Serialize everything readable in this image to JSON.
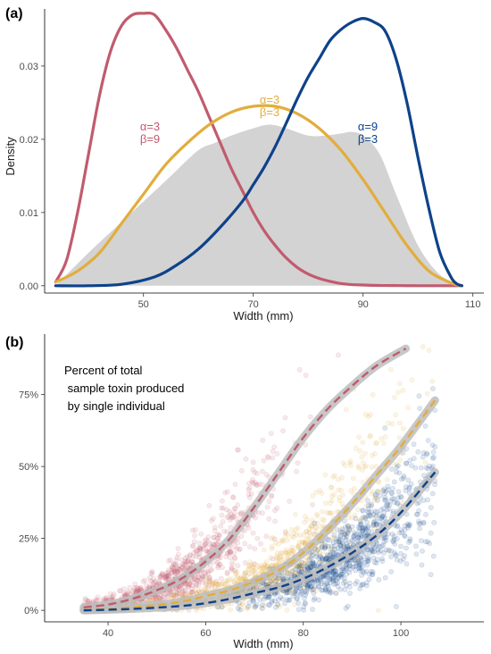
{
  "chart_data": [
    {
      "type": "line",
      "panel_label": "(a)",
      "xlabel": "Width (mm)",
      "ylabel": "Density",
      "xlim": [
        32,
        112
      ],
      "ylim": [
        -0.001,
        0.0378
      ],
      "xticks": [
        50,
        70,
        90,
        110
      ],
      "yticks": [
        0,
        0.01,
        0.02,
        0.03
      ],
      "ytick_labels": [
        "0.00",
        "0.01",
        "0.02",
        "0.03"
      ],
      "grid": false,
      "background_distribution": {
        "color": "#d3d3d3",
        "x": [
          34,
          40,
          45,
          50,
          55,
          60,
          63,
          66,
          70,
          73,
          76,
          80,
          83,
          86,
          88,
          90,
          93,
          96,
          100,
          104,
          108
        ],
        "y": [
          0.0,
          0.0045,
          0.008,
          0.0115,
          0.015,
          0.0185,
          0.0195,
          0.0205,
          0.0215,
          0.022,
          0.0215,
          0.0205,
          0.0205,
          0.0208,
          0.021,
          0.0205,
          0.018,
          0.0125,
          0.0055,
          0.0015,
          0.0
        ]
      },
      "series": [
        {
          "color": "#c15b6e",
          "annotation": [
            "α=3",
            "β=9"
          ],
          "x": [
            34,
            36,
            38,
            40,
            42,
            44,
            46,
            48,
            50,
            52,
            54,
            56,
            58,
            60,
            62,
            64,
            66,
            68,
            70,
            72,
            74,
            76,
            78,
            80,
            82,
            84,
            86,
            88,
            90,
            92,
            94,
            96,
            98,
            100,
            104,
            108
          ],
          "y": [
            0.0005,
            0.0035,
            0.01,
            0.018,
            0.026,
            0.032,
            0.0355,
            0.037,
            0.0372,
            0.037,
            0.035,
            0.0325,
            0.0295,
            0.0265,
            0.023,
            0.0195,
            0.016,
            0.013,
            0.01,
            0.0075,
            0.0055,
            0.0038,
            0.0025,
            0.0016,
            0.001,
            0.0006,
            0.0003,
            0.00015,
            0.0001,
            5e-05,
            3e-05,
            2e-05,
            1e-05,
            0.0,
            0.0,
            0.0
          ]
        },
        {
          "color": "#e2ad3c",
          "annotation": [
            "α=3",
            "β=3"
          ],
          "x": [
            34,
            38,
            42,
            46,
            50,
            54,
            58,
            62,
            66,
            70,
            74,
            78,
            82,
            86,
            90,
            94,
            98,
            102,
            106,
            108
          ],
          "y": [
            0.0005,
            0.002,
            0.0045,
            0.0085,
            0.0125,
            0.0165,
            0.0195,
            0.022,
            0.0237,
            0.0245,
            0.0245,
            0.0235,
            0.0215,
            0.0185,
            0.0145,
            0.01,
            0.0055,
            0.002,
            0.0004,
            0.0
          ]
        },
        {
          "color": "#0e428a",
          "annotation": [
            "α=9",
            "β=3"
          ],
          "x": [
            34,
            40,
            46,
            52,
            56,
            60,
            64,
            68,
            70,
            72,
            74,
            76,
            78,
            80,
            82,
            84,
            86,
            88,
            90,
            92,
            94,
            96,
            98,
            100,
            102,
            104,
            106,
            107,
            108
          ],
          "y": [
            0.0,
            0.0,
            0.0002,
            0.0012,
            0.0028,
            0.005,
            0.008,
            0.0115,
            0.0138,
            0.0162,
            0.019,
            0.0222,
            0.0255,
            0.0285,
            0.031,
            0.0335,
            0.035,
            0.036,
            0.0365,
            0.036,
            0.0348,
            0.031,
            0.025,
            0.0175,
            0.0105,
            0.0045,
            0.0012,
            0.0003,
            0.0
          ]
        }
      ]
    },
    {
      "type": "scatter",
      "panel_label": "(b)",
      "xlabel": "Width (mm)",
      "ylabel": "",
      "xlim": [
        27,
        117
      ],
      "ylim": [
        -0.04,
        0.96
      ],
      "xticks": [
        40,
        60,
        80,
        100
      ],
      "yticks": [
        0,
        0.25,
        0.5,
        0.75
      ],
      "ytick_labels": [
        "0%",
        "25%",
        "50%",
        "75%"
      ],
      "grid": false,
      "note": [
        "Percent of total",
        " sample toxin produced",
        " by single individual"
      ],
      "series": [
        {
          "color": "#c15b6e",
          "point_x_range": [
            35,
            101
          ],
          "trend_x": [
            35,
            40,
            45,
            50,
            55,
            60,
            65,
            70,
            75,
            80,
            85,
            90,
            95,
            101
          ],
          "trend_y": [
            0.01,
            0.02,
            0.04,
            0.07,
            0.11,
            0.17,
            0.25,
            0.36,
            0.48,
            0.6,
            0.7,
            0.78,
            0.85,
            0.91
          ]
        },
        {
          "color": "#e2ad3c",
          "point_x_range": [
            35,
            107
          ],
          "trend_x": [
            35,
            45,
            55,
            60,
            65,
            70,
            75,
            80,
            85,
            90,
            95,
            100,
            107
          ],
          "trend_y": [
            0.0,
            0.01,
            0.03,
            0.05,
            0.07,
            0.1,
            0.14,
            0.2,
            0.28,
            0.37,
            0.47,
            0.57,
            0.73
          ]
        },
        {
          "color": "#0e428a",
          "point_x_range": [
            35,
            107
          ],
          "trend_x": [
            35,
            45,
            55,
            60,
            65,
            70,
            75,
            80,
            85,
            90,
            95,
            100,
            107
          ],
          "trend_y": [
            0.0,
            0.005,
            0.015,
            0.025,
            0.04,
            0.06,
            0.08,
            0.11,
            0.15,
            0.2,
            0.26,
            0.34,
            0.48
          ]
        }
      ]
    }
  ]
}
